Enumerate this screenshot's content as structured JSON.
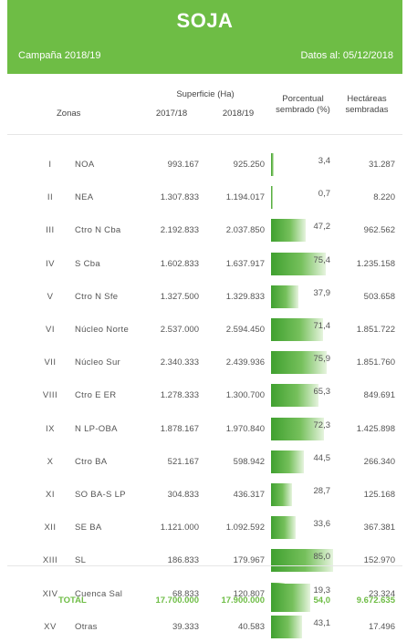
{
  "header": {
    "title": "SOJA",
    "campaign": "Campaña 2018/19",
    "date": "Datos al: 05/12/2018"
  },
  "columns": {
    "zonas": "Zonas",
    "superficie": "Superficie (Ha)",
    "y1": "2017/18",
    "y2": "2018/19",
    "porcentual_1": "Porcentual",
    "porcentual_2": "sembrado (%)",
    "hectareas_1": "Hectáreas",
    "hectareas_2": "sembradas"
  },
  "rows": [
    {
      "num": "I",
      "zona": "NOA",
      "s1718": "993.167",
      "s1819": "925.250",
      "pct": "3,4",
      "pct_value": 3.4,
      "ha": "31.287"
    },
    {
      "num": "II",
      "zona": "NEA",
      "s1718": "1.307.833",
      "s1819": "1.194.017",
      "pct": "0,7",
      "pct_value": 0.7,
      "ha": "8.220"
    },
    {
      "num": "III",
      "zona": "Ctro N Cba",
      "s1718": "2.192.833",
      "s1819": "2.037.850",
      "pct": "47,2",
      "pct_value": 47.2,
      "ha": "962.562"
    },
    {
      "num": "IV",
      "zona": "S Cba",
      "s1718": "1.602.833",
      "s1819": "1.637.917",
      "pct": "75,4",
      "pct_value": 75.4,
      "ha": "1.235.158"
    },
    {
      "num": "V",
      "zona": "Ctro N Sfe",
      "s1718": "1.327.500",
      "s1819": "1.329.833",
      "pct": "37,9",
      "pct_value": 37.9,
      "ha": "503.658"
    },
    {
      "num": "VI",
      "zona": "Núcleo Norte",
      "s1718": "2.537.000",
      "s1819": "2.594.450",
      "pct": "71,4",
      "pct_value": 71.4,
      "ha": "1.851.722"
    },
    {
      "num": "VII",
      "zona": "Núcleo Sur",
      "s1718": "2.340.333",
      "s1819": "2.439.936",
      "pct": "75,9",
      "pct_value": 75.9,
      "ha": "1.851.760"
    },
    {
      "num": "VIII",
      "zona": "Ctro E ER",
      "s1718": "1.278.333",
      "s1819": "1.300.700",
      "pct": "65,3",
      "pct_value": 65.3,
      "ha": "849.691"
    },
    {
      "num": "IX",
      "zona": "N LP-OBA",
      "s1718": "1.878.167",
      "s1819": "1.970.840",
      "pct": "72,3",
      "pct_value": 72.3,
      "ha": "1.425.898"
    },
    {
      "num": "X",
      "zona": "Ctro BA",
      "s1718": "521.167",
      "s1819": "598.942",
      "pct": "44,5",
      "pct_value": 44.5,
      "ha": "266.340"
    },
    {
      "num": "XI",
      "zona": "SO BA-S LP",
      "s1718": "304.833",
      "s1819": "436.317",
      "pct": "28,7",
      "pct_value": 28.7,
      "ha": "125.168"
    },
    {
      "num": "XII",
      "zona": "SE BA",
      "s1718": "1.121.000",
      "s1819": "1.092.592",
      "pct": "33,6",
      "pct_value": 33.6,
      "ha": "367.381"
    },
    {
      "num": "XIII",
      "zona": "SL",
      "s1718": "186.833",
      "s1819": "179.967",
      "pct": "85,0",
      "pct_value": 85.0,
      "ha": "152.970"
    },
    {
      "num": "XIV",
      "zona": "Cuenca Sal",
      "s1718": "68.833",
      "s1819": "120.807",
      "pct": "19,3",
      "pct_value": 19.3,
      "ha": "23.324"
    },
    {
      "num": "XV",
      "zona": "Otras",
      "s1718": "39.333",
      "s1819": "40.583",
      "pct": "43,1",
      "pct_value": 43.1,
      "ha": "17.496"
    }
  ],
  "total": {
    "label": "TOTAL",
    "s1718": "17.700.000",
    "s1819": "17.900.000",
    "pct": "54,0",
    "pct_value": 54.0,
    "ha": "9.672.635"
  },
  "colors": {
    "accent": "#6ebd45",
    "bar_dark": "#3fa02f",
    "bar_light": "#e6f4de"
  }
}
